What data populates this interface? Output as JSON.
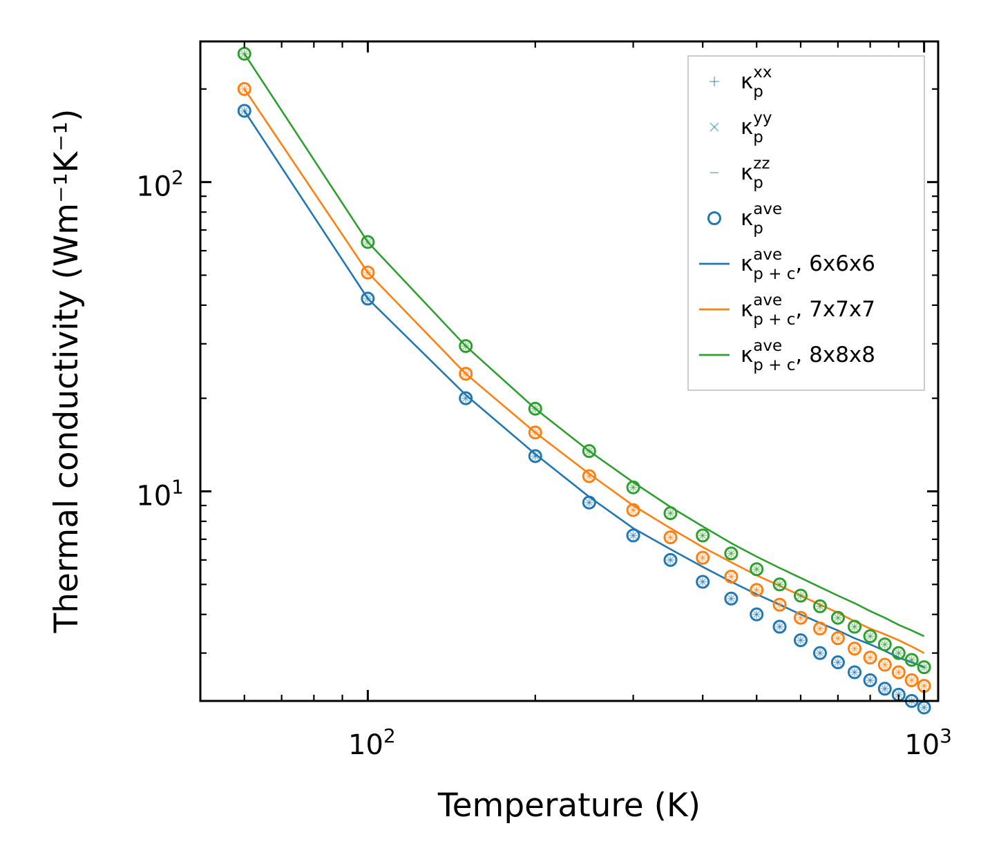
{
  "chart_data": {
    "type": "scatter",
    "x_scale": "log",
    "y_scale": "log",
    "xlabel": "Temperature (K)",
    "ylabel": "Thermal conductivity (Wm⁻¹K⁻¹)",
    "xlim": [
      50,
      1060
    ],
    "ylim": [
      2.1,
      285
    ],
    "x_ticks": [
      {
        "value": 100,
        "label": "10",
        "exp": "2"
      },
      {
        "value": 1000,
        "label": "10",
        "exp": "3"
      }
    ],
    "y_ticks": [
      {
        "value": 10,
        "label": "10",
        "exp": "1"
      },
      {
        "value": 100,
        "label": "10",
        "exp": "2"
      }
    ],
    "legend_position": "top-right",
    "legend": [
      {
        "base": "κ",
        "sub": "p",
        "sup": "xx",
        "suffix": "",
        "marker": "plus"
      },
      {
        "base": "κ",
        "sub": "p",
        "sup": "yy",
        "suffix": "",
        "marker": "cross"
      },
      {
        "base": "κ",
        "sub": "p",
        "sup": "zz",
        "suffix": "",
        "marker": "dash"
      },
      {
        "base": "κ",
        "sub": "p",
        "sup": "ave",
        "suffix": "",
        "marker": "circle"
      },
      {
        "base": "κ",
        "sub": "p + c",
        "sup": "ave",
        "suffix": ", 6x6x6",
        "marker": "line",
        "color": "#1f77b4"
      },
      {
        "base": "κ",
        "sub": "p + c",
        "sup": "ave",
        "suffix": ", 7x7x7",
        "marker": "line",
        "color": "#ff7f0e"
      },
      {
        "base": "κ",
        "sub": "p + c",
        "sup": "ave",
        "suffix": ", 8x8x8",
        "marker": "line",
        "color": "#2ca02c"
      }
    ],
    "x": [
      60,
      100,
      150,
      200,
      250,
      300,
      350,
      400,
      450,
      500,
      550,
      600,
      650,
      700,
      750,
      800,
      850,
      900,
      950,
      1000
    ],
    "series": [
      {
        "name": "6x6x6",
        "color": "#1f77b4",
        "points": [
          170,
          42,
          20,
          13,
          9.2,
          7.2,
          6.0,
          5.1,
          4.5,
          4.0,
          3.65,
          3.3,
          3.0,
          2.8,
          2.6,
          2.45,
          2.3,
          2.2,
          2.1,
          2.0
        ],
        "line": [
          170,
          42,
          20.5,
          13.2,
          9.6,
          7.6,
          6.5,
          5.7,
          5.1,
          4.65,
          4.3,
          4.0,
          3.75,
          3.55,
          3.35,
          3.2,
          3.05,
          2.9,
          2.8,
          2.7
        ]
      },
      {
        "name": "7x7x7",
        "color": "#ff7f0e",
        "points": [
          200,
          51,
          24,
          15.5,
          11.2,
          8.7,
          7.1,
          6.1,
          5.3,
          4.8,
          4.3,
          3.9,
          3.6,
          3.35,
          3.1,
          2.9,
          2.75,
          2.6,
          2.45,
          2.35
        ],
        "line": [
          200,
          51,
          24,
          15.5,
          11.4,
          9.0,
          7.6,
          6.6,
          5.9,
          5.35,
          4.95,
          4.6,
          4.3,
          4.05,
          3.8,
          3.6,
          3.45,
          3.3,
          3.15,
          3.0
        ]
      },
      {
        "name": "8x8x8",
        "color": "#2ca02c",
        "points": [
          260,
          64,
          29.5,
          18.5,
          13.5,
          10.3,
          8.5,
          7.2,
          6.3,
          5.6,
          5.0,
          4.6,
          4.25,
          3.9,
          3.65,
          3.4,
          3.2,
          3.0,
          2.85,
          2.7
        ],
        "line": [
          260,
          64,
          29.5,
          18.5,
          13.5,
          10.7,
          8.9,
          7.7,
          6.8,
          6.15,
          5.65,
          5.25,
          4.9,
          4.6,
          4.35,
          4.1,
          3.9,
          3.7,
          3.55,
          3.4
        ]
      }
    ]
  }
}
